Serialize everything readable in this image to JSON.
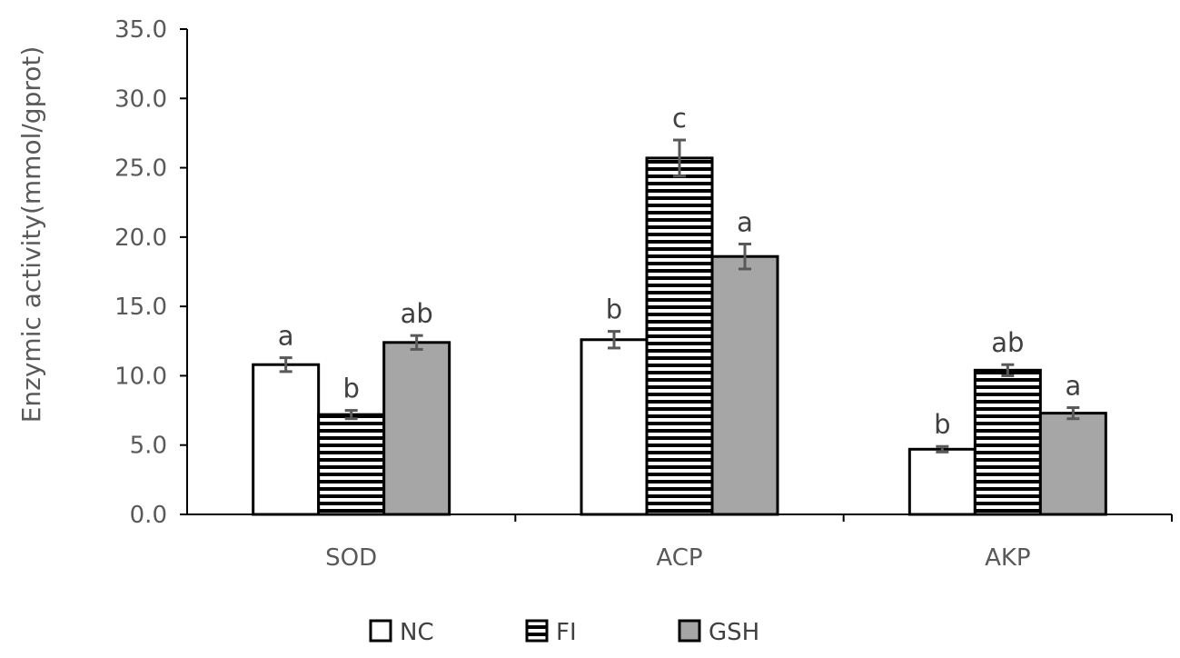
{
  "chart_data": {
    "type": "bar",
    "title": "",
    "xlabel": "",
    "ylabel": "Enzymic activity(mmol/gprot)",
    "ylim": [
      0,
      35
    ],
    "yticks": [
      "0.0",
      "5.0",
      "10.0",
      "15.0",
      "20.0",
      "25.0",
      "30.0",
      "35.0"
    ],
    "grid": false,
    "legend_position": "bottom",
    "categories": [
      "SOD",
      "ACP",
      "AKP"
    ],
    "series": [
      {
        "name": "NC",
        "fill": "white",
        "values": [
          10.8,
          12.6,
          4.7
        ],
        "errors": [
          0.5,
          0.6,
          0.2
        ],
        "labels": [
          "a",
          "b",
          "b"
        ]
      },
      {
        "name": "FI",
        "fill": "horizontal-stripes",
        "values": [
          7.2,
          25.7,
          10.4
        ],
        "errors": [
          0.3,
          1.3,
          0.4
        ],
        "labels": [
          "b",
          "c",
          "ab"
        ]
      },
      {
        "name": "GSH",
        "fill": "#a6a6a6",
        "values": [
          12.4,
          18.6,
          7.3
        ],
        "errors": [
          0.5,
          0.9,
          0.4
        ],
        "labels": [
          "ab",
          "a",
          "a"
        ]
      }
    ]
  }
}
